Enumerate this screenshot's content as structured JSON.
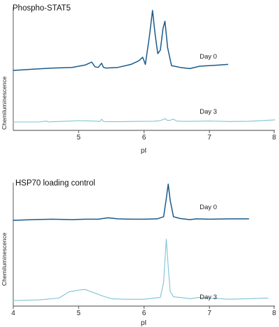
{
  "colors": {
    "day0": "#1a5a8a",
    "day3": "#7cc3d6"
  },
  "chart_data": [
    {
      "type": "line",
      "title": "Phospho-STAT5",
      "xlabel": "pI",
      "ylabel": "Chemiluminescence",
      "xlim": [
        4,
        8
      ],
      "xticks": [
        "5",
        "6",
        "7",
        "8"
      ],
      "grid": false,
      "series": [
        {
          "name": "Day 0",
          "color": "#1a5a8a",
          "x": [
            4.0,
            4.3,
            4.6,
            4.9,
            5.1,
            5.2,
            5.25,
            5.3,
            5.35,
            5.38,
            5.42,
            5.6,
            5.8,
            5.92,
            5.98,
            6.02,
            6.08,
            6.13,
            6.17,
            6.21,
            6.25,
            6.29,
            6.32,
            6.36,
            6.42,
            6.55,
            6.7,
            6.85,
            7.0,
            7.15,
            7.28
          ],
          "y": [
            0.0,
            0.02,
            0.04,
            0.05,
            0.09,
            0.14,
            0.06,
            0.05,
            0.12,
            0.05,
            0.04,
            0.05,
            0.1,
            0.16,
            0.22,
            0.1,
            0.55,
            1.0,
            0.6,
            0.28,
            0.34,
            0.7,
            0.82,
            0.38,
            0.08,
            0.05,
            0.03,
            0.07,
            0.08,
            0.09,
            0.1
          ],
          "label_at": 7.0
        },
        {
          "name": "Day 3",
          "color": "#7cc3d6",
          "x": [
            4.0,
            4.4,
            4.5,
            4.55,
            4.6,
            4.8,
            5.0,
            5.2,
            5.33,
            5.35,
            5.38,
            5.6,
            5.9,
            6.15,
            6.25,
            6.32,
            6.36,
            6.4,
            6.45,
            6.5,
            6.6,
            6.8,
            7.0,
            7.3,
            7.6,
            7.85,
            8.0
          ],
          "y": [
            0.0,
            0.0,
            0.06,
            0.0,
            0.02,
            0.05,
            0.09,
            0.07,
            0.04,
            0.18,
            0.03,
            0.02,
            0.04,
            0.05,
            0.09,
            0.22,
            0.1,
            0.12,
            0.18,
            0.06,
            0.04,
            0.05,
            0.07,
            0.03,
            0.05,
            0.1,
            0.14
          ],
          "label_at": 7.0
        }
      ]
    },
    {
      "type": "line",
      "title": "HSP70 loading control",
      "xlabel": "pI",
      "ylabel": "Chemiluminescence",
      "xlim": [
        4,
        8
      ],
      "xticks": [
        "4",
        "5",
        "6",
        "7",
        "8"
      ],
      "grid": false,
      "series": [
        {
          "name": "Day 0",
          "color": "#1a5a8a",
          "x": [
            4.0,
            4.3,
            4.6,
            4.9,
            5.1,
            5.3,
            5.45,
            5.6,
            5.8,
            6.0,
            6.2,
            6.3,
            6.34,
            6.37,
            6.4,
            6.45,
            6.55,
            6.7,
            6.8,
            7.0,
            7.3,
            7.6
          ],
          "y": [
            0.0,
            0.02,
            0.03,
            0.02,
            0.03,
            0.03,
            0.07,
            0.04,
            0.03,
            0.03,
            0.04,
            0.1,
            0.6,
            1.0,
            0.55,
            0.1,
            0.05,
            0.02,
            0.04,
            0.03,
            0.04,
            0.04
          ],
          "label_at": 7.0
        },
        {
          "name": "Day 3",
          "color": "#7cc3d6",
          "x": [
            4.0,
            4.4,
            4.7,
            4.85,
            5.0,
            5.1,
            5.2,
            5.35,
            5.5,
            5.7,
            6.0,
            6.25,
            6.3,
            6.34,
            6.37,
            6.4,
            6.45,
            6.55,
            6.7,
            6.85,
            7.0,
            7.3,
            7.6,
            7.9
          ],
          "y": [
            0.0,
            0.01,
            0.04,
            0.14,
            0.17,
            0.18,
            0.14,
            0.08,
            0.03,
            0.02,
            0.02,
            0.05,
            0.3,
            1.0,
            0.55,
            0.15,
            0.06,
            0.05,
            0.03,
            0.05,
            0.04,
            0.02,
            0.03,
            0.04
          ],
          "label_at": 7.0
        }
      ]
    }
  ]
}
